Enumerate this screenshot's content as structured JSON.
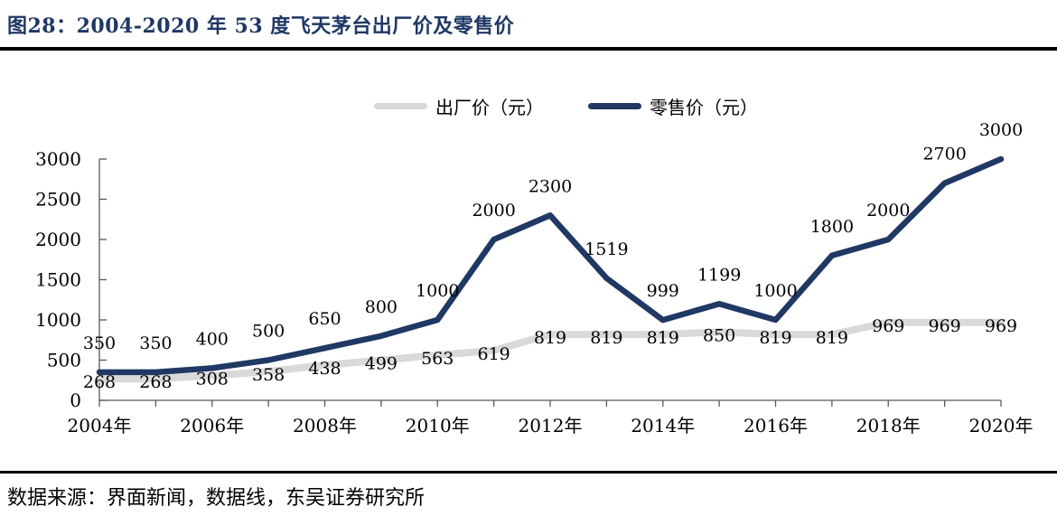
{
  "header": {
    "title": "图28：2004-2020 年 53 度飞天茅台出厂价及零售价"
  },
  "footer": {
    "source": "数据来源：界面新闻，数据线，东吴证券研究所"
  },
  "theme": {
    "title_color": "#1f3864",
    "rule_color": "#000000",
    "axis_color": "#595959",
    "label_color": "#000000"
  },
  "chart_data": {
    "type": "line",
    "x": [
      2004,
      2005,
      2006,
      2007,
      2008,
      2009,
      2010,
      2011,
      2012,
      2013,
      2014,
      2015,
      2016,
      2017,
      2018,
      2019,
      2020
    ],
    "series": [
      {
        "name": "出厂价（元）",
        "color": "#d9d9d9",
        "values": [
          268,
          268,
          308,
          358,
          438,
          499,
          563,
          619,
          819,
          819,
          819,
          850,
          819,
          819,
          969,
          969,
          969
        ]
      },
      {
        "name": "零售价（元）",
        "color": "#1f3864",
        "values": [
          350,
          350,
          400,
          500,
          650,
          800,
          1000,
          2000,
          2300,
          1519,
          999,
          1199,
          1000,
          1800,
          2000,
          2700,
          3000
        ]
      }
    ],
    "x_tick_labels": [
      "2004年",
      "2006年",
      "2008年",
      "2010年",
      "2012年",
      "2014年",
      "2016年",
      "2018年",
      "2020年"
    ],
    "y_ticks": [
      0,
      500,
      1000,
      1500,
      2000,
      2500,
      3000
    ],
    "ylim": [
      0,
      3000
    ],
    "grid": false,
    "legend_position": "top-center",
    "data_labels": true
  }
}
